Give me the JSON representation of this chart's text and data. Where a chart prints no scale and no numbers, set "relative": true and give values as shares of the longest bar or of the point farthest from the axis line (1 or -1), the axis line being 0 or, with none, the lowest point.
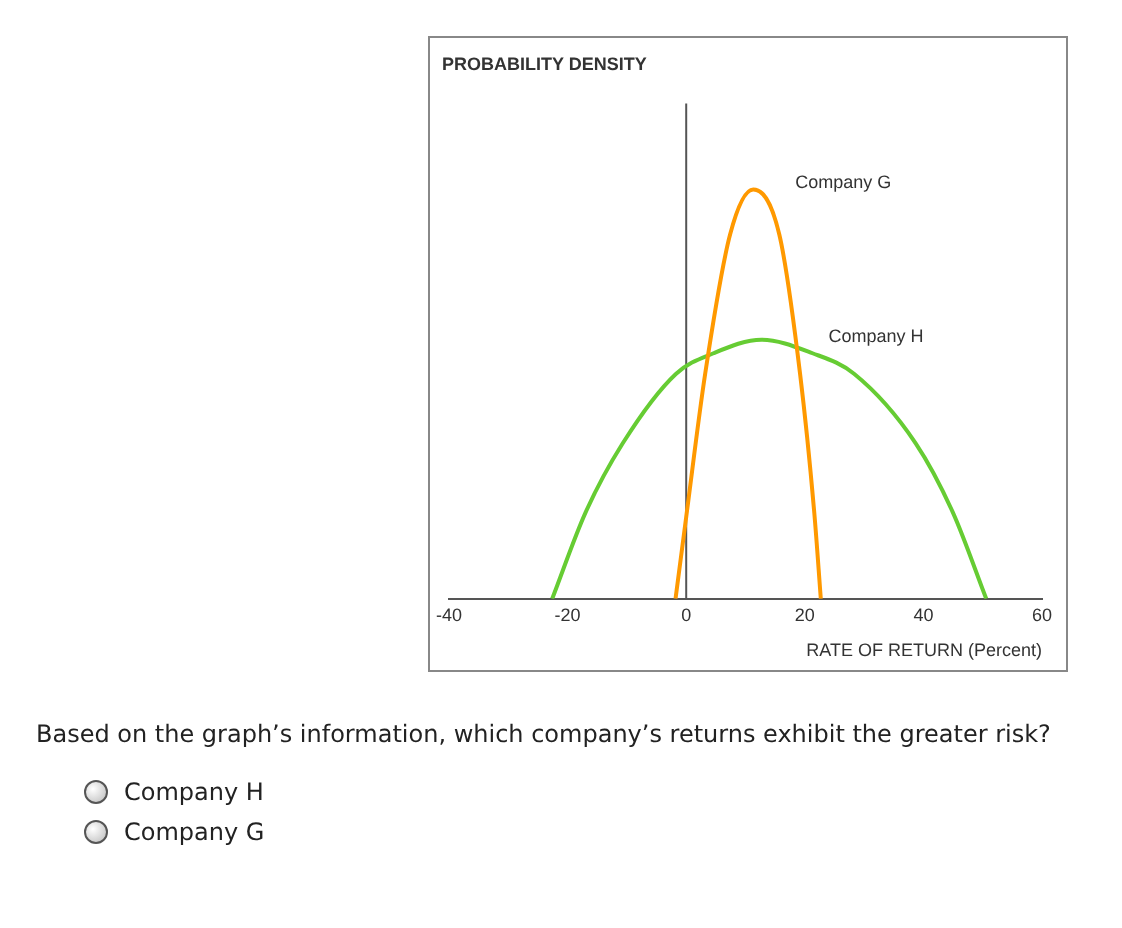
{
  "chart_data": {
    "type": "line",
    "xlabel": "RATE OF RETURN (Percent)",
    "relative": true,
    "xlim": [
      -40,
      60
    ],
    "xticks": [
      -40,
      -20,
      0,
      20,
      40,
      60
    ],
    "grid": false,
    "legend": false,
    "marker": "none",
    "line_style": "solid",
    "series": [
      {
        "name": "Company G",
        "color": "#ff9900",
        "x": [
          -1.8,
          0,
          3.2,
          7.4,
          11.3,
          15.7,
          19.2,
          21.6,
          22.7
        ],
        "values": [
          0,
          0.2,
          0.55,
          0.89,
          1,
          0.89,
          0.55,
          0.21,
          0
        ]
      },
      {
        "name": "Company H",
        "color": "#66cc33",
        "x": [
          -22.6,
          -17,
          -10.7,
          -1.7,
          4.6,
          12.7,
          21.3,
          28.3,
          38.7,
          45,
          50.6
        ],
        "values": [
          0,
          0.21,
          0.38,
          0.55,
          0.6,
          0.633,
          0.6,
          0.55,
          0.38,
          0.21,
          0
        ]
      }
    ],
    "ref_lines": [
      {
        "axis": "x",
        "value": 0
      }
    ],
    "annotations": [
      "PROBABILITY DENSITY",
      "Based on the graph’s information, which company’s returns exhibit the greater risk?",
      "Company H",
      "Company G"
    ]
  }
}
